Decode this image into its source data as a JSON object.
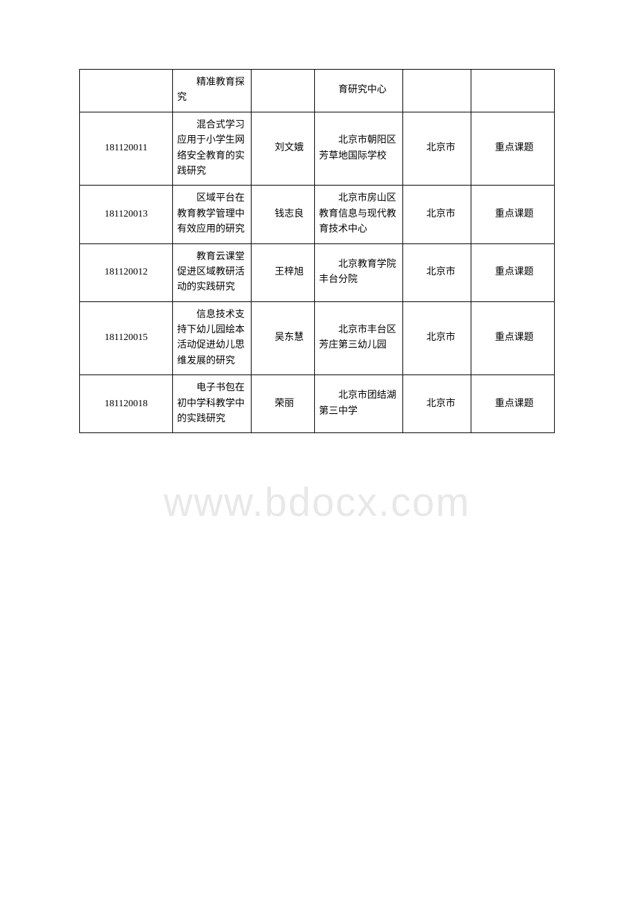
{
  "watermark": "www.bdocx.com",
  "table": {
    "rows": [
      {
        "id": "",
        "title": "精准教育探究",
        "person": "",
        "org": "育研究中心",
        "region": "",
        "type": ""
      },
      {
        "id": "181120011",
        "title": "混合式学习应用于小学生网络安全教育的实践研究",
        "person": "刘文娥",
        "org": "北京市朝阳区芳草地国际学校",
        "region": "北京市",
        "type": "重点课题"
      },
      {
        "id": "181120013",
        "title": "区域平台在教育教学管理中有效应用的研究",
        "person": "钱志良",
        "org": "北京市房山区教育信息与现代教育技术中心",
        "region": "北京市",
        "type": "重点课题"
      },
      {
        "id": "181120012",
        "title": "教育云课堂促进区域教研活动的实践研究",
        "person": "王梓旭",
        "org": "北京教育学院丰台分院",
        "region": "北京市",
        "type": "重点课题"
      },
      {
        "id": "181120015",
        "title": "信息技术支持下幼儿园绘本活动促进幼儿思维发展的研究",
        "person": "吴东慧",
        "org": "北京市丰台区芳庄第三幼儿园",
        "region": "北京市",
        "type": "重点课题"
      },
      {
        "id": "181120018",
        "title": "电子书包在初中学科教学中的实践研究",
        "person": "荣丽",
        "org": "北京市团结湖第三中学",
        "region": "北京市",
        "type": "重点课题"
      }
    ]
  }
}
